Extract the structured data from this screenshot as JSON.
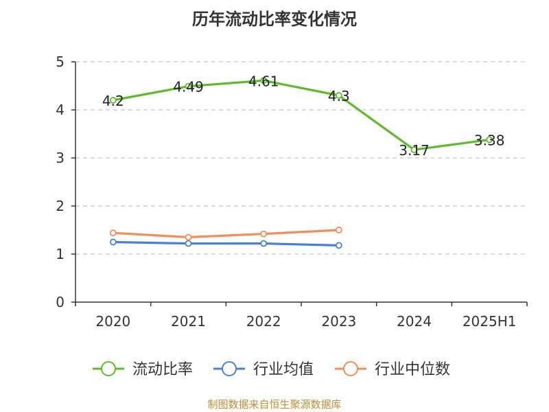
{
  "title": "历年流动比率变化情况",
  "source": "制图数据来自恒生聚源数据库",
  "chart_data": {
    "type": "line",
    "title": "历年流动比率变化情况",
    "xlabel": "",
    "ylabel": "",
    "categories": [
      "2020",
      "2021",
      "2022",
      "2023",
      "2024",
      "2025H1"
    ],
    "ylim": [
      0,
      5
    ],
    "yticks": [
      0,
      1,
      2,
      3,
      4,
      5
    ],
    "grid": true,
    "legend_position": "bottom",
    "series": [
      {
        "name": "流动比率",
        "color": "#5dbb2b",
        "values": [
          4.2,
          4.49,
          4.61,
          4.3,
          3.17,
          3.38
        ],
        "labels": [
          "4.2",
          "4.49",
          "4.61",
          "4.3",
          "3.17",
          "3.38"
        ]
      },
      {
        "name": "行业均值",
        "color": "#4a7fd6",
        "values": [
          1.25,
          1.22,
          1.22,
          1.18,
          null,
          null
        ]
      },
      {
        "name": "行业中位数",
        "color": "#f28c5a",
        "values": [
          1.44,
          1.35,
          1.42,
          1.5,
          null,
          null
        ]
      }
    ]
  }
}
